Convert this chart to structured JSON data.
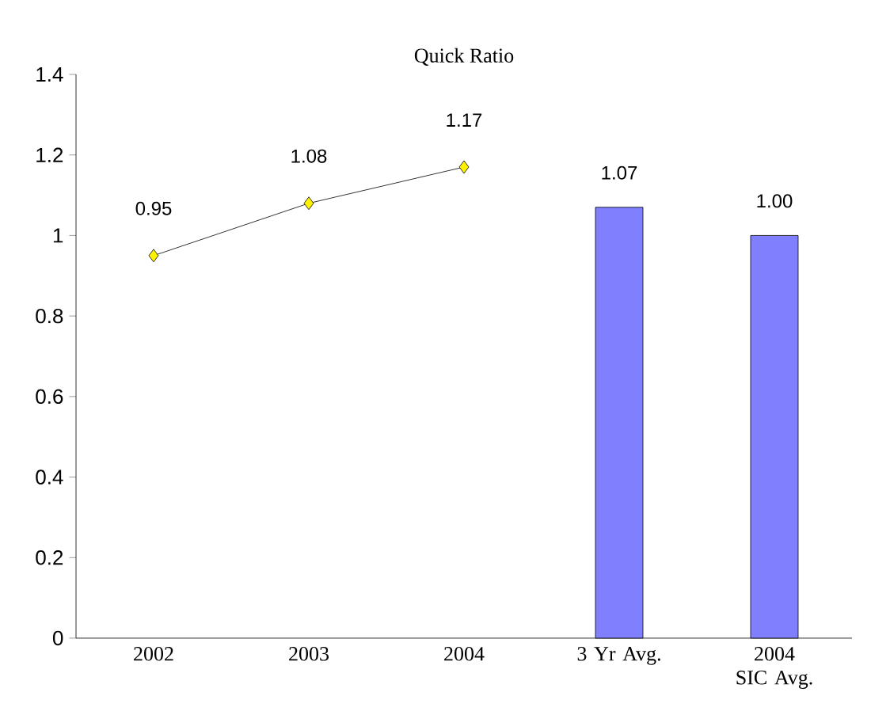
{
  "chart_data": {
    "type": "bar",
    "title": "Quick Ratio",
    "categories": [
      "2002",
      "2003",
      "2004",
      "3 Yr Avg.",
      "2004 SIC Avg."
    ],
    "series": [
      {
        "type": "line",
        "color": "#000000",
        "marker": "diamond",
        "values": [
          0.95,
          1.08,
          1.17,
          null,
          null
        ],
        "value_labels": [
          "0.95",
          "1.08",
          "1.17",
          null,
          null
        ]
      },
      {
        "color": "#8080ff",
        "values": [
          null,
          null,
          null,
          1.07,
          1.0
        ],
        "value_labels": [
          null,
          null,
          null,
          "1.07",
          "1.00"
        ]
      }
    ],
    "ylim": [
      0,
      1.4
    ],
    "yticks": [
      0,
      0.2,
      0.4,
      0.6,
      0.8,
      1,
      1.2,
      1.4
    ],
    "grid": false
  }
}
